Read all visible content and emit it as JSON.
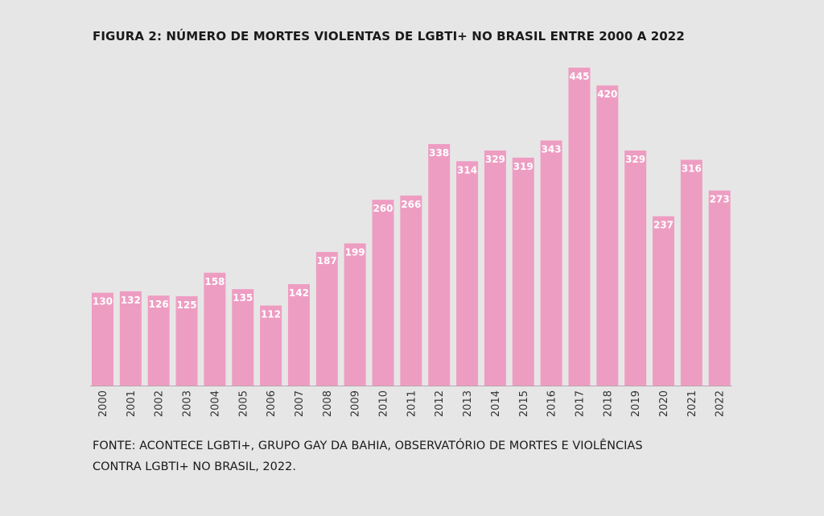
{
  "chart_data": {
    "type": "bar",
    "title": "FIGURA 2: NÚMERO DE MORTES VIOLENTAS DE LGBTI+ NO BRASIL ENTRE 2000 A 2022",
    "categories": [
      "2000",
      "2001",
      "2002",
      "2003",
      "2004",
      "2005",
      "2006",
      "2007",
      "2008",
      "2009",
      "2010",
      "2011",
      "2012",
      "2013",
      "2014",
      "2015",
      "2016",
      "2017",
      "2018",
      "2019",
      "2020",
      "2021",
      "2022"
    ],
    "values": [
      130,
      132,
      126,
      125,
      158,
      135,
      112,
      142,
      187,
      199,
      260,
      266,
      338,
      314,
      329,
      319,
      343,
      445,
      420,
      329,
      237,
      316,
      273
    ],
    "xlabel": "",
    "ylabel": "",
    "ylim": [
      0,
      445
    ],
    "bar_color": "#ee9dc2",
    "label_color": "#ffffff",
    "grid": false
  },
  "source": {
    "line1": "FONTE: ACONTECE LGBTI+, GRUPO GAY DA BAHIA, OBSERVATÓRIO DE MORTES E VIOLÊNCIAS",
    "line2": "CONTRA LGBTI+ NO BRASIL, 2022."
  }
}
